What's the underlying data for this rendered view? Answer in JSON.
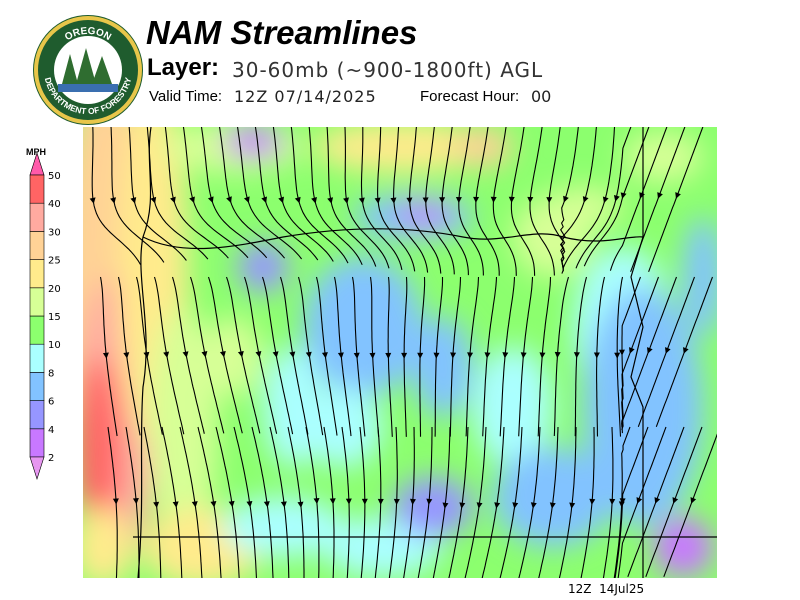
{
  "logo": {
    "text_top": "OREGON",
    "text_bottom": "DEPARTMENT OF FORESTRY"
  },
  "header": {
    "title": "NAM Streamlines",
    "layer_label": "Layer:",
    "layer_value": "30-60mb (~900-1800ft) AGL",
    "valid_label": "Valid Time:",
    "valid_value": "12Z 07/14/2025",
    "fhour_label": "Forecast Hour:",
    "fhour_value": "00"
  },
  "legend": {
    "unit": "MPH",
    "bins": [
      {
        "label": "2",
        "color": "#c878ff"
      },
      {
        "label": "4",
        "color": "#9696ff"
      },
      {
        "label": "6",
        "color": "#82c3ff"
      },
      {
        "label": "8",
        "color": "#aaffff"
      },
      {
        "label": "10",
        "color": "#8cff6e"
      },
      {
        "label": "15",
        "color": "#d7ff96"
      },
      {
        "label": "20",
        "color": "#ffeb8c"
      },
      {
        "label": "25",
        "color": "#ffd296"
      },
      {
        "label": "30",
        "color": "#ffaaa0"
      },
      {
        "label": "40",
        "color": "#ff6464"
      },
      {
        "label": "50",
        "color": "#ff5aaa"
      }
    ],
    "below_color": "#e696f0"
  },
  "footer": {
    "stamp": "12Z  14Jul25"
  }
}
